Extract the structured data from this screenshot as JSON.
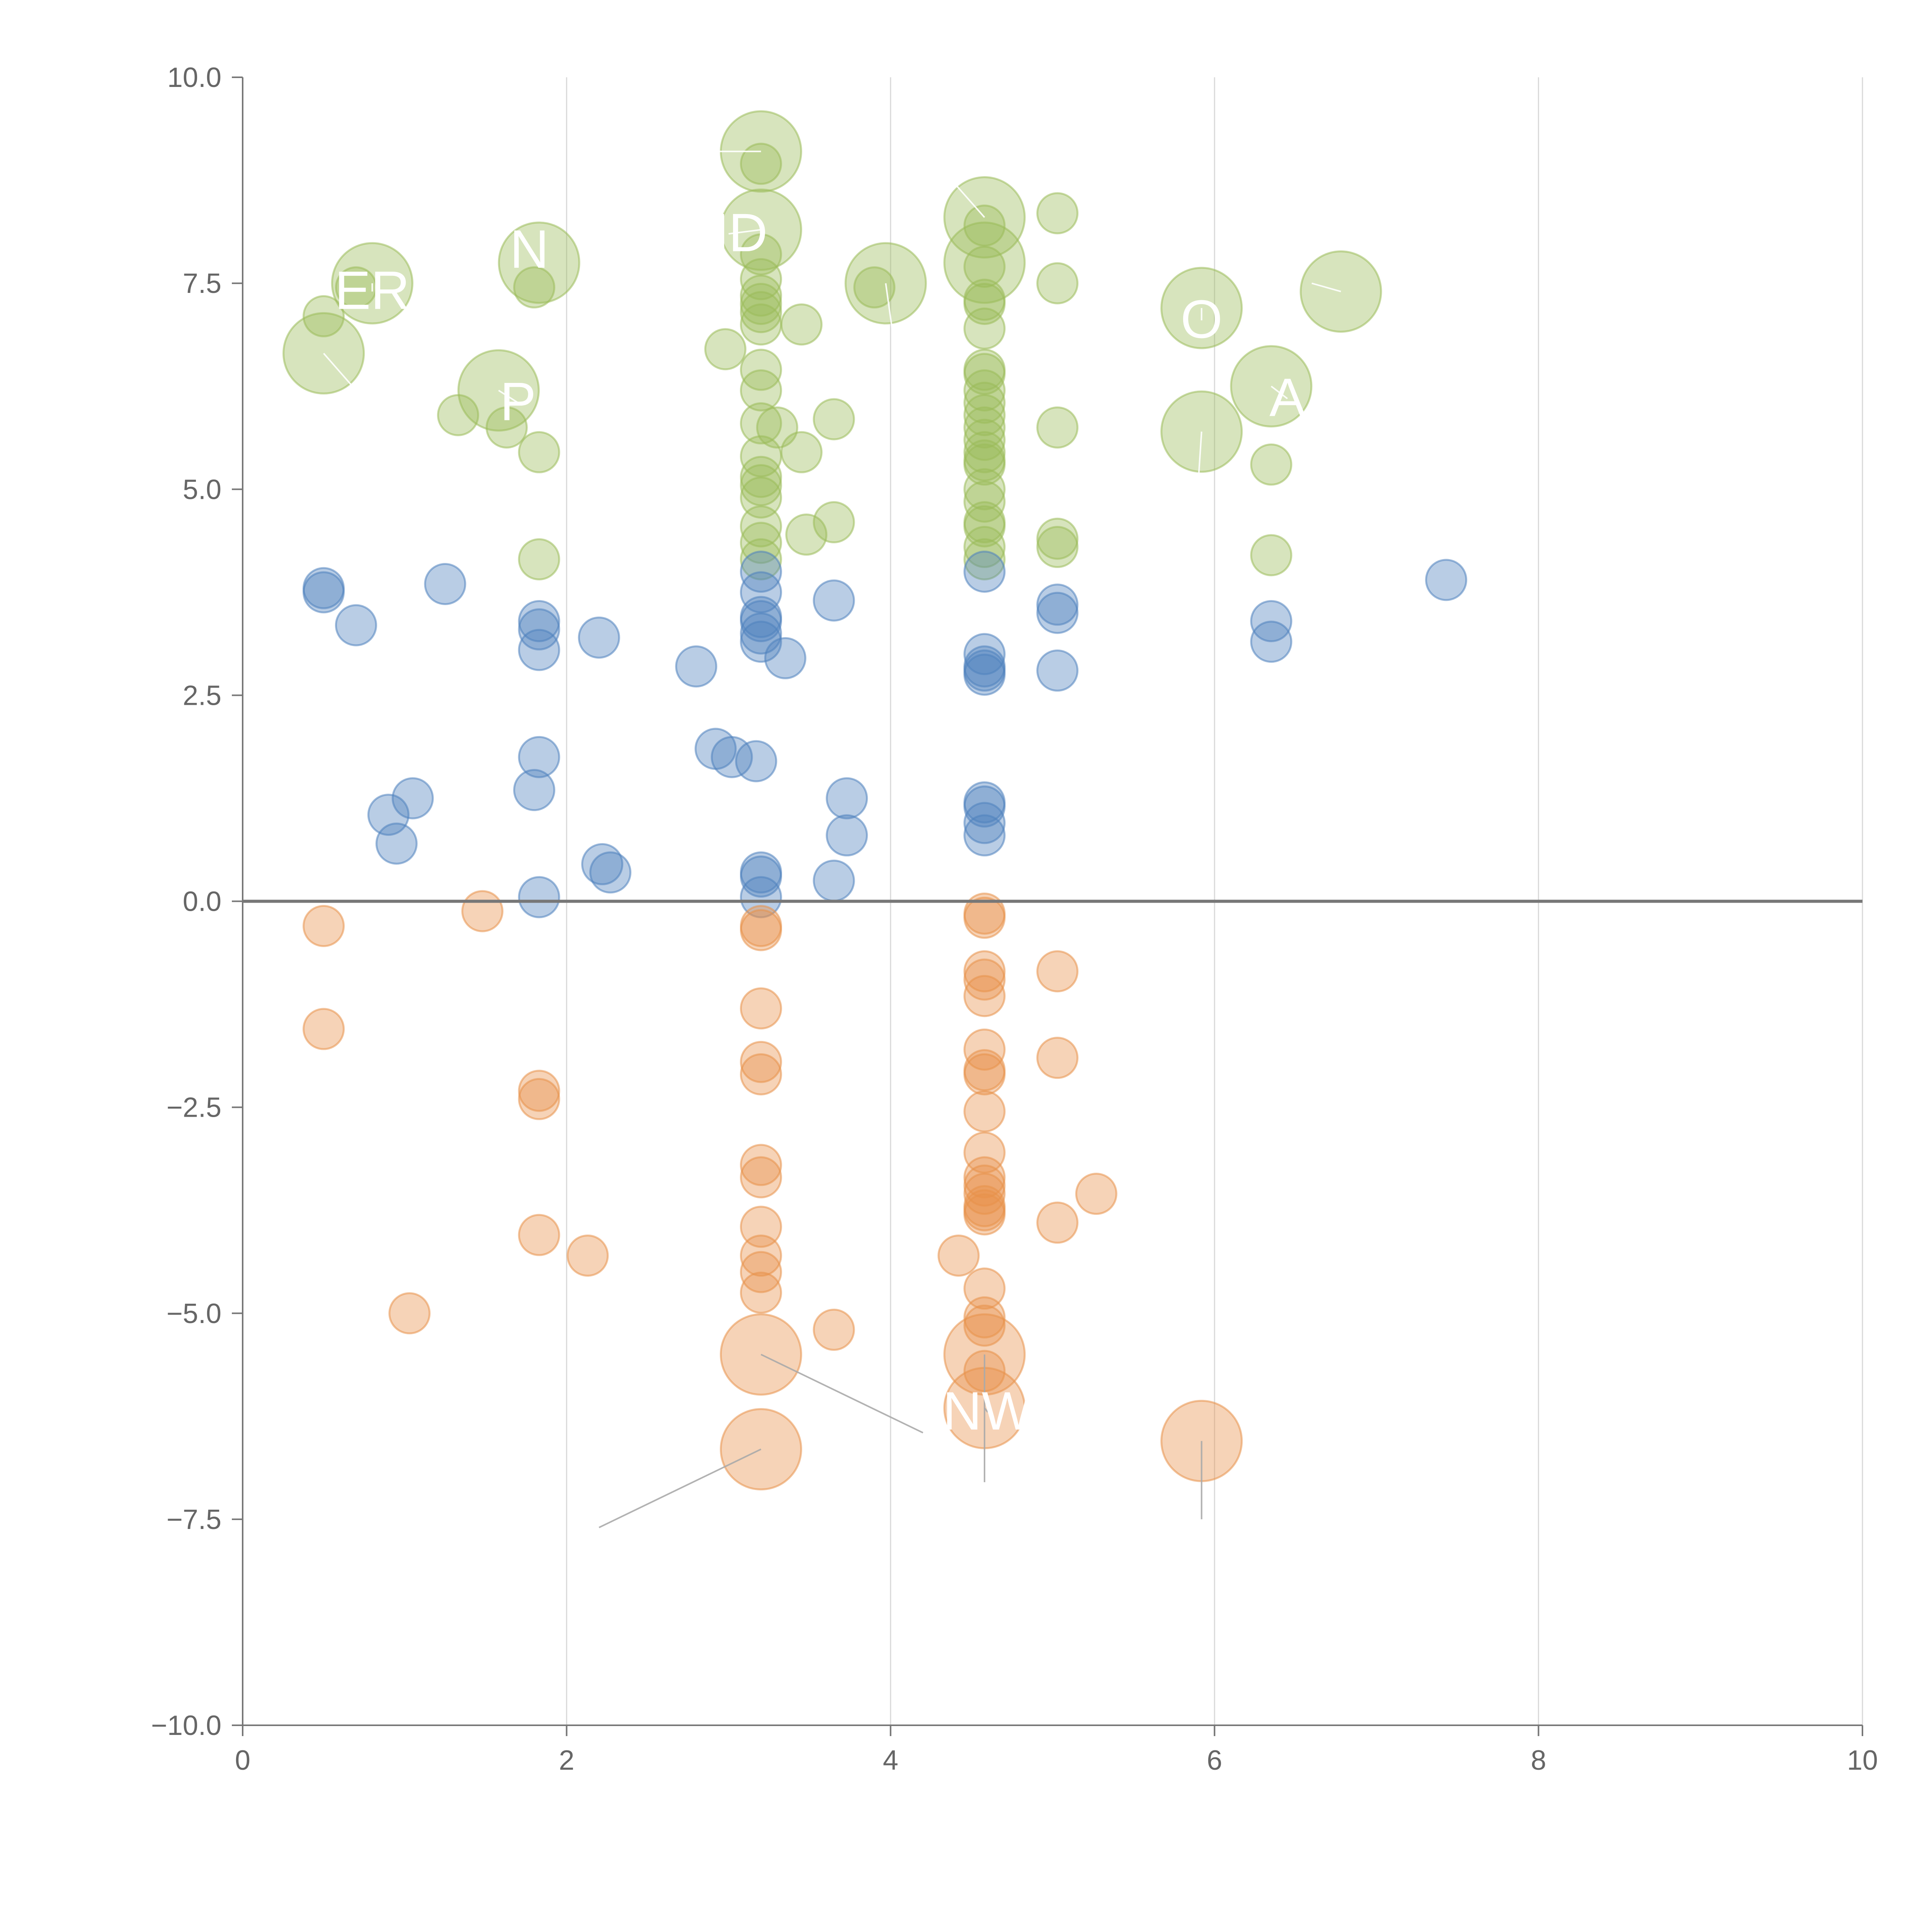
{
  "chart_data": {
    "type": "scatter",
    "title": "",
    "xlabel": "",
    "ylabel": "",
    "xlim": [
      0,
      10
    ],
    "ylim": [
      -10,
      10
    ],
    "x_ticks": [
      "0",
      "2",
      "4",
      "6",
      "8",
      "10"
    ],
    "y_ticks": [
      "10.0",
      "7.5",
      "5.0",
      "2.5",
      "0.0",
      "−2.5",
      "−5.0",
      "−7.5",
      "−10.0"
    ],
    "grid": "vertical",
    "reference_line_y": 0,
    "colors": {
      "positive": "#9bbb59",
      "neutral": "#4f81bd",
      "negative": "#e8914a",
      "leader_light": "#ffffff",
      "leader_dark": "#aaaaaa",
      "axis": "#777777",
      "grid": "#d9d9d9",
      "tick_text": "#666666"
    },
    "series": [
      {
        "name": "positive",
        "points": [
          [
            0.5,
            7.1
          ],
          [
            0.7,
            7.45
          ],
          [
            1.8,
            7.45
          ],
          [
            1.33,
            5.9
          ],
          [
            1.63,
            5.75
          ],
          [
            1.83,
            5.45
          ],
          [
            1.83,
            4.15
          ],
          [
            2.98,
            6.7
          ],
          [
            3.45,
            7.0
          ],
          [
            3.3,
            5.75
          ],
          [
            3.45,
            5.45
          ],
          [
            3.65,
            5.85
          ],
          [
            3.48,
            4.45
          ],
          [
            3.65,
            4.6
          ],
          [
            3.2,
            8.95
          ],
          [
            3.2,
            7.85
          ],
          [
            3.2,
            7.55
          ],
          [
            3.2,
            7.35
          ],
          [
            3.2,
            7.25
          ],
          [
            3.2,
            7.15
          ],
          [
            3.2,
            7.0
          ],
          [
            3.2,
            6.45
          ],
          [
            3.2,
            6.2
          ],
          [
            3.2,
            5.8
          ],
          [
            3.2,
            5.4
          ],
          [
            3.2,
            5.15
          ],
          [
            3.2,
            5.05
          ],
          [
            3.2,
            4.9
          ],
          [
            3.2,
            4.55
          ],
          [
            3.2,
            4.35
          ],
          [
            3.2,
            4.15
          ],
          [
            3.9,
            7.45
          ],
          [
            4.58,
            8.2
          ],
          [
            4.58,
            7.7
          ],
          [
            4.58,
            7.3
          ],
          [
            4.58,
            7.25
          ],
          [
            4.58,
            6.95
          ],
          [
            4.58,
            6.45
          ],
          [
            4.58,
            6.4
          ],
          [
            4.58,
            6.2
          ],
          [
            4.58,
            6.05
          ],
          [
            4.58,
            5.9
          ],
          [
            4.58,
            5.75
          ],
          [
            4.58,
            5.6
          ],
          [
            4.58,
            5.45
          ],
          [
            4.58,
            5.35
          ],
          [
            4.58,
            5.3
          ],
          [
            4.58,
            5.0
          ],
          [
            4.58,
            4.85
          ],
          [
            4.58,
            4.6
          ],
          [
            4.58,
            4.55
          ],
          [
            4.58,
            4.3
          ],
          [
            4.58,
            4.15
          ],
          [
            5.03,
            8.35
          ],
          [
            5.03,
            7.5
          ],
          [
            5.03,
            5.75
          ],
          [
            5.03,
            4.4
          ],
          [
            5.03,
            4.3
          ],
          [
            6.35,
            5.3
          ],
          [
            6.35,
            4.2
          ]
        ]
      },
      {
        "name": "neutral",
        "points": [
          [
            0.5,
            3.8
          ],
          [
            0.5,
            3.75
          ],
          [
            0.7,
            3.35
          ],
          [
            1.25,
            3.85
          ],
          [
            1.83,
            3.4
          ],
          [
            1.83,
            3.3
          ],
          [
            1.83,
            3.05
          ],
          [
            2.2,
            3.2
          ],
          [
            2.8,
            2.85
          ],
          [
            3.2,
            4.0
          ],
          [
            3.2,
            3.75
          ],
          [
            3.2,
            3.45
          ],
          [
            3.2,
            3.4
          ],
          [
            3.2,
            3.25
          ],
          [
            3.2,
            3.15
          ],
          [
            3.35,
            2.95
          ],
          [
            3.65,
            3.65
          ],
          [
            4.58,
            4.0
          ],
          [
            4.58,
            3.0
          ],
          [
            4.58,
            2.85
          ],
          [
            4.58,
            2.8
          ],
          [
            4.58,
            2.75
          ],
          [
            5.03,
            3.6
          ],
          [
            5.03,
            3.5
          ],
          [
            5.03,
            2.8
          ],
          [
            6.35,
            3.4
          ],
          [
            6.35,
            3.15
          ],
          [
            7.43,
            3.9
          ],
          [
            1.83,
            1.75
          ],
          [
            1.8,
            1.35
          ],
          [
            1.05,
            1.25
          ],
          [
            0.9,
            1.05
          ],
          [
            0.95,
            0.7
          ],
          [
            2.22,
            0.45
          ],
          [
            2.27,
            0.35
          ],
          [
            1.83,
            0.05
          ],
          [
            2.92,
            1.85
          ],
          [
            3.02,
            1.75
          ],
          [
            3.17,
            1.7
          ],
          [
            3.2,
            0.35
          ],
          [
            3.2,
            0.3
          ],
          [
            3.2,
            0.05
          ],
          [
            3.73,
            1.25
          ],
          [
            3.73,
            0.8
          ],
          [
            3.65,
            0.25
          ],
          [
            4.58,
            1.2
          ],
          [
            4.58,
            1.15
          ],
          [
            4.58,
            0.95
          ],
          [
            4.58,
            0.8
          ]
        ]
      },
      {
        "name": "negative",
        "points": [
          [
            0.5,
            -0.3
          ],
          [
            1.48,
            -0.12
          ],
          [
            0.5,
            -1.55
          ],
          [
            1.83,
            -2.3
          ],
          [
            1.83,
            -2.4
          ],
          [
            1.83,
            -4.05
          ],
          [
            2.13,
            -4.3
          ],
          [
            1.03,
            -5.0
          ],
          [
            3.2,
            -0.3
          ],
          [
            3.2,
            -0.35
          ],
          [
            3.2,
            -1.3
          ],
          [
            3.2,
            -1.95
          ],
          [
            3.2,
            -2.1
          ],
          [
            3.2,
            -3.2
          ],
          [
            3.2,
            -3.35
          ],
          [
            3.2,
            -3.95
          ],
          [
            3.2,
            -4.3
          ],
          [
            3.2,
            -4.5
          ],
          [
            3.2,
            -4.75
          ],
          [
            3.65,
            -5.2
          ],
          [
            4.58,
            -0.15
          ],
          [
            4.58,
            -0.2
          ],
          [
            4.58,
            -0.85
          ],
          [
            4.58,
            -0.95
          ],
          [
            4.58,
            -1.15
          ],
          [
            4.58,
            -1.8
          ],
          [
            4.58,
            -2.05
          ],
          [
            4.58,
            -2.1
          ],
          [
            4.58,
            -2.55
          ],
          [
            4.58,
            -3.05
          ],
          [
            4.58,
            -3.35
          ],
          [
            4.58,
            -3.45
          ],
          [
            4.58,
            -3.55
          ],
          [
            4.58,
            -3.7
          ],
          [
            4.58,
            -3.75
          ],
          [
            4.58,
            -3.8
          ],
          [
            4.58,
            -4.7
          ],
          [
            4.58,
            -5.05
          ],
          [
            4.58,
            -5.15
          ],
          [
            4.58,
            -5.7
          ],
          [
            4.42,
            -4.3
          ],
          [
            5.03,
            -0.85
          ],
          [
            5.03,
            -1.9
          ],
          [
            5.03,
            -3.9
          ],
          [
            5.27,
            -3.55
          ]
        ]
      }
    ],
    "labeled_bubbles": [
      {
        "series": "positive",
        "x": 0.5,
        "y": 6.65,
        "size": 2.0,
        "label": "",
        "label_x": 0.7,
        "label_y": 6.2
      },
      {
        "series": "positive",
        "x": 0.8,
        "y": 7.5,
        "size": 2.0,
        "label": "ER",
        "label_x": 0.8,
        "label_y": 7.4
      },
      {
        "series": "positive",
        "x": 1.58,
        "y": 6.2,
        "size": 2.0,
        "label": "P",
        "label_x": 1.7,
        "label_y": 6.05
      },
      {
        "series": "positive",
        "x": 1.83,
        "y": 7.75,
        "size": 2.0,
        "label": "N",
        "label_x": 1.77,
        "label_y": 7.9
      },
      {
        "series": "positive",
        "x": 3.2,
        "y": 9.1,
        "size": 2.0,
        "label": "",
        "label_x": 2.85,
        "label_y": 9.1
      },
      {
        "series": "positive",
        "x": 3.2,
        "y": 8.15,
        "size": 2.0,
        "label": "ND",
        "label_x": 3.0,
        "label_y": 8.1
      },
      {
        "series": "positive",
        "x": 3.97,
        "y": 7.5,
        "size": 2.0,
        "label": "",
        "label_x": 4.02,
        "label_y": 6.8
      },
      {
        "series": "positive",
        "x": 4.58,
        "y": 8.3,
        "size": 2.0,
        "label": "",
        "label_x": 4.4,
        "label_y": 8.7
      },
      {
        "series": "positive",
        "x": 4.58,
        "y": 7.75,
        "size": 2.0,
        "label": "",
        "label_x": 4.58,
        "label_y": 7.75
      },
      {
        "series": "positive",
        "x": 5.92,
        "y": 7.2,
        "size": 2.0,
        "label": "O",
        "label_x": 5.92,
        "label_y": 7.05
      },
      {
        "series": "positive",
        "x": 5.92,
        "y": 5.7,
        "size": 2.0,
        "label": "",
        "label_x": 5.9,
        "label_y": 5.1
      },
      {
        "series": "positive",
        "x": 6.35,
        "y": 6.25,
        "size": 2.0,
        "label": "A",
        "label_x": 6.45,
        "label_y": 6.1
      },
      {
        "series": "positive",
        "x": 6.78,
        "y": 7.4,
        "size": 2.0,
        "label": "",
        "label_x": 6.6,
        "label_y": 7.5
      },
      {
        "series": "negative",
        "x": 3.2,
        "y": -5.5,
        "size": 2.0,
        "label": "",
        "label_x": 4.2,
        "label_y": -6.45
      },
      {
        "series": "negative",
        "x": 3.2,
        "y": -6.65,
        "size": 2.0,
        "label": "",
        "label_x": 2.2,
        "label_y": -7.6
      },
      {
        "series": "negative",
        "x": 4.58,
        "y": -5.5,
        "size": 2.0,
        "label": "",
        "label_x": 4.58,
        "label_y": -7.05
      },
      {
        "series": "negative",
        "x": 4.58,
        "y": -6.15,
        "size": 2.0,
        "label": "NW",
        "label_x": 4.6,
        "label_y": -6.2
      },
      {
        "series": "negative",
        "x": 5.92,
        "y": -6.55,
        "size": 2.0,
        "label": "",
        "label_x": 5.92,
        "label_y": -7.5
      }
    ]
  }
}
